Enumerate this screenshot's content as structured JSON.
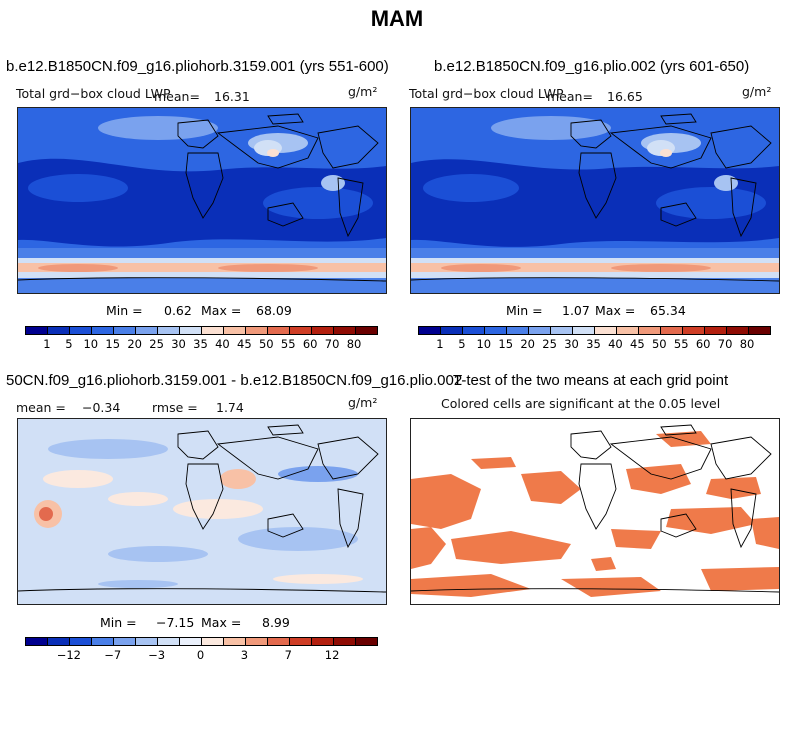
{
  "figure": {
    "title": "MAM"
  },
  "panels": [
    {
      "title": "b.e12.B1850CN.f09_g16.pliohorb.3159.001 (yrs 551-600)",
      "variable": "Total grd−box cloud LWP",
      "mean_label": "mean=",
      "mean_value": "16.31",
      "units": "g/m²",
      "min_label": "Min =",
      "min_value": "0.62",
      "max_label": "Max =",
      "max_value": "68.09"
    },
    {
      "title": "b.e12.B1850CN.f09_g16.plio.002 (yrs 601-650)",
      "variable": "Total grd−box cloud LWP",
      "mean_label": "mean=",
      "mean_value": "16.65",
      "units": "g/m²",
      "min_label": "Min =",
      "min_value": "1.07",
      "max_label": "Max =",
      "max_value": "65.34"
    },
    {
      "title": "50CN.f09_g16.pliohorb.3159.001 - b.e12.B1850CN.f09_g16.plio.002",
      "mean_label": "mean =",
      "mean_value": "−0.34",
      "rmse_label": "rmse =",
      "rmse_value": "1.74",
      "units": "g/m²",
      "min_label": "Min =",
      "min_value": "−7.15",
      "max_label": "Max =",
      "max_value": "8.99"
    },
    {
      "title": "T-test of the two means at each grid point",
      "subtitle": "Colored cells are significant at the 0.05 level"
    }
  ],
  "chart_data": [
    {
      "type": "heatmap",
      "title": "b.e12.B1850CN.f09_g16.pliohorb.3159.001 (yrs 551-600)",
      "variable": "Total grd−box cloud LWP",
      "units": "g/m²",
      "mean": 16.31,
      "min": 0.62,
      "max": 68.09,
      "colorbar_ticks": [
        "1",
        "5",
        "10",
        "15",
        "20",
        "25",
        "30",
        "35",
        "40",
        "45",
        "50",
        "55",
        "60",
        "70",
        "80"
      ],
      "colorbar_colors": [
        "#00008f",
        "#0a2fb8",
        "#1b4fd6",
        "#2d66e2",
        "#4a7fe8",
        "#7aa2ee",
        "#a7c3f2",
        "#d1e0f6",
        "#fbe0d2",
        "#f8c1a6",
        "#f0997a",
        "#e36a4e",
        "#cf3e26",
        "#b3200f",
        "#8f0c04",
        "#6a0000"
      ]
    },
    {
      "type": "heatmap",
      "title": "b.e12.B1850CN.f09_g16.plio.002 (yrs 601-650)",
      "variable": "Total grd−box cloud LWP",
      "units": "g/m²",
      "mean": 16.65,
      "min": 1.07,
      "max": 65.34,
      "colorbar_ticks": [
        "1",
        "5",
        "10",
        "15",
        "20",
        "25",
        "30",
        "35",
        "40",
        "45",
        "50",
        "55",
        "60",
        "70",
        "80"
      ],
      "colorbar_colors": [
        "#00008f",
        "#0a2fb8",
        "#1b4fd6",
        "#2d66e2",
        "#4a7fe8",
        "#7aa2ee",
        "#a7c3f2",
        "#d1e0f6",
        "#fbe0d2",
        "#f8c1a6",
        "#f0997a",
        "#e36a4e",
        "#cf3e26",
        "#b3200f",
        "#8f0c04",
        "#6a0000"
      ]
    },
    {
      "type": "heatmap",
      "title": "50CN.f09_g16.pliohorb.3159.001 - b.e12.B1850CN.f09_g16.plio.002",
      "units": "g/m²",
      "mean": -0.34,
      "rmse": 1.74,
      "min": -7.15,
      "max": 8.99,
      "colorbar_ticks": [
        "−12",
        "−7",
        "−3",
        "0",
        "3",
        "7",
        "12"
      ],
      "colorbar_colors": [
        "#00008f",
        "#0a2fb8",
        "#1b4fd6",
        "#4a7fe8",
        "#7aa2ee",
        "#a7c3f2",
        "#d1e0f6",
        "#eaf0fb",
        "#fbe9df",
        "#f8c1a6",
        "#f0997a",
        "#e36a4e",
        "#cf3e26",
        "#b3200f",
        "#8f0c04",
        "#6a0000"
      ]
    },
    {
      "type": "heatmap",
      "title": "T-test of the two means at each grid point",
      "subtitle": "Colored cells are significant at the 0.05 level",
      "significant_color": "#ef7a4a"
    }
  ]
}
